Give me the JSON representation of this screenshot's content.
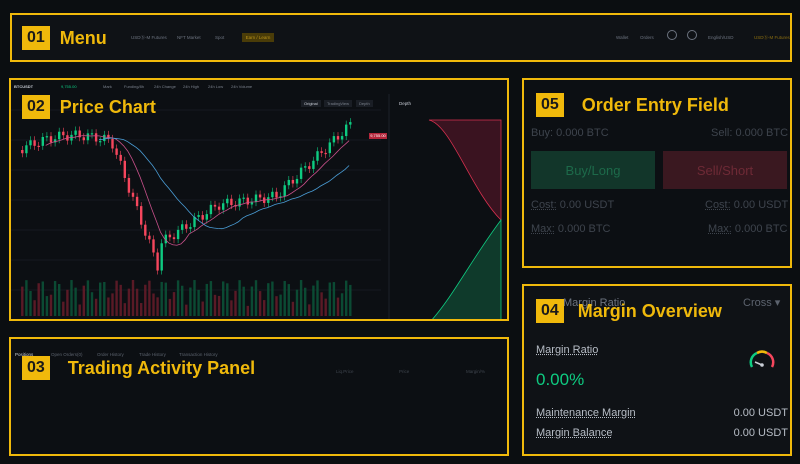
{
  "menu": {
    "tag_number": "01",
    "title": "Menu",
    "items": [
      "USDⓈ-M Futures",
      "NFT Market",
      "Spot",
      "Earn / Learn"
    ],
    "right_items": [
      "Wallet",
      "Orders",
      "English/USD",
      "USDⓈ-M Futures"
    ]
  },
  "chart": {
    "tag_number": "02",
    "title": "Price Chart",
    "symbol": "BTCUSDT",
    "last_price": "9,755.00",
    "stats": [
      "Mark",
      "Funding/8h",
      "24h Change",
      "24h High",
      "24h Low",
      "24h Volume"
    ],
    "views": [
      "Original",
      "TradingView",
      "Depth"
    ],
    "depth_label": "Depth",
    "price_tag": "9,755.00"
  },
  "activity": {
    "tag_number": "03",
    "title": "Trading Activity Panel",
    "tabs": [
      "Positions",
      "Open Orders(0)",
      "Order History",
      "Trade History",
      "Transaction History"
    ],
    "columns": [
      "Liq.Price",
      "Price",
      "Margin/%"
    ]
  },
  "order_entry": {
    "tag_number": "05",
    "title": "Order Entry Field",
    "buy_label": "Buy:",
    "buy_value": "0.000 BTC",
    "sell_label": "Sell:",
    "sell_value": "0.000 BTC",
    "buy_button": "Buy/Long",
    "sell_button": "Sell/Short",
    "cost_label": "Cost:",
    "cost_buy": "0.00 USDT",
    "cost_sell": "0.00 USDT",
    "max_label": "Max:",
    "max_buy": "0.000 BTC",
    "max_sell": "0.000 BTC"
  },
  "margin": {
    "tag_number": "04",
    "title": "Margin Overview",
    "header_label": "Margin Ratio",
    "mode": "Cross",
    "ratio_label": "Margin Ratio",
    "ratio_value": "0.00%",
    "maintenance_label": "Maintenance Margin",
    "maintenance_value": "0.00 USDT",
    "balance_label": "Margin Balance",
    "balance_value": "0.00 USDT"
  },
  "colors": {
    "accent": "#f0b90b",
    "buy": "#0ecb81",
    "sell": "#f6465d",
    "background": "#0b0e11"
  }
}
